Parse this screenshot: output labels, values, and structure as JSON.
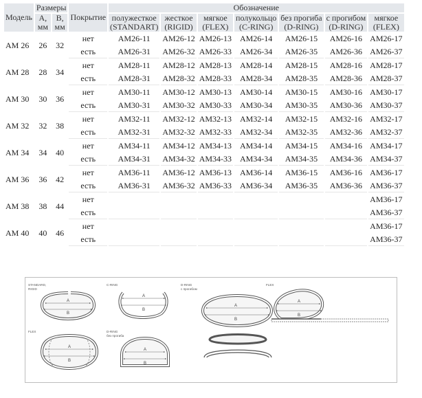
{
  "table": {
    "headers": {
      "model": "Модель",
      "sizes": "Размеры",
      "designation": "Обозначение",
      "a": "А,",
      "a_unit": "мм",
      "b": "В,",
      "b_unit": "мм",
      "coating": "Покрытие",
      "types": [
        {
          "name": "полужесткое",
          "code": "(STANDART)"
        },
        {
          "name": "жесткое",
          "code": "(RIGID)"
        },
        {
          "name": "мягкое",
          "code": "(FLEX)"
        },
        {
          "name": "полукольцо",
          "code": "(C-RING)"
        },
        {
          "name": "без прогиба",
          "code": "(D-RING)"
        },
        {
          "name": "с прогибом",
          "code": "(D-RING)"
        },
        {
          "name": "мягкое",
          "code": "(FLEX)"
        }
      ]
    },
    "groups": [
      {
        "model": "АМ 26",
        "a": "26",
        "b": "32",
        "rows": [
          {
            "coating": "нет",
            "codes": [
              "АМ26-11",
              "АМ26-12",
              "АМ26-13",
              "АМ26-14",
              "АМ26-15",
              "АМ26-16",
              "АМ26-17"
            ]
          },
          {
            "coating": "есть",
            "codes": [
              "АМ26-31",
              "АМ26-32",
              "АМ26-33",
              "АМ26-34",
              "АМ26-35",
              "АМ26-36",
              "АМ26-37"
            ]
          }
        ]
      },
      {
        "model": "АМ 28",
        "a": "28",
        "b": "34",
        "rows": [
          {
            "coating": "нет",
            "codes": [
              "АМ28-11",
              "АМ28-12",
              "АМ28-13",
              "АМ28-14",
              "АМ28-15",
              "АМ28-16",
              "АМ28-17"
            ]
          },
          {
            "coating": "есть",
            "codes": [
              "АМ28-31",
              "АМ28-32",
              "АМ28-33",
              "АМ28-34",
              "АМ28-35",
              "АМ28-36",
              "АМ28-37"
            ]
          }
        ]
      },
      {
        "model": "АМ 30",
        "a": "30",
        "b": "36",
        "rows": [
          {
            "coating": "нет",
            "codes": [
              "АМ30-11",
              "АМ30-12",
              "АМ30-13",
              "АМ30-14",
              "АМ30-15",
              "АМ30-16",
              "АМ30-17"
            ]
          },
          {
            "coating": "есть",
            "codes": [
              "АМ30-31",
              "АМ30-32",
              "АМ30-33",
              "АМ30-34",
              "АМ30-35",
              "АМ30-36",
              "АМ30-37"
            ]
          }
        ]
      },
      {
        "model": "АМ 32",
        "a": "32",
        "b": "38",
        "rows": [
          {
            "coating": "нет",
            "codes": [
              "АМ32-11",
              "АМ32-12",
              "АМ32-13",
              "АМ32-14",
              "АМ32-15",
              "АМ32-16",
              "АМ32-17"
            ]
          },
          {
            "coating": "есть",
            "codes": [
              "АМ32-31",
              "АМ32-32",
              "АМ32-33",
              "АМ32-34",
              "АМ32-35",
              "АМ32-36",
              "АМ32-37"
            ]
          }
        ]
      },
      {
        "model": "АМ 34",
        "a": "34",
        "b": "40",
        "rows": [
          {
            "coating": "нет",
            "codes": [
              "АМ34-11",
              "АМ34-12",
              "АМ34-13",
              "АМ34-14",
              "АМ34-15",
              "АМ34-16",
              "АМ34-17"
            ]
          },
          {
            "coating": "есть",
            "codes": [
              "АМ34-31",
              "АМ34-32",
              "АМ34-33",
              "АМ34-34",
              "АМ34-35",
              "АМ34-36",
              "АМ34-37"
            ]
          }
        ]
      },
      {
        "model": "АМ 36",
        "a": "36",
        "b": "42",
        "rows": [
          {
            "coating": "нет",
            "codes": [
              "АМ36-11",
              "АМ36-12",
              "АМ36-13",
              "АМ36-14",
              "АМ36-15",
              "АМ36-16",
              "АМ36-17"
            ]
          },
          {
            "coating": "есть",
            "codes": [
              "АМ36-31",
              "АМ36-32",
              "АМ36-33",
              "АМ36-34",
              "АМ36-35",
              "АМ36-36",
              "АМ36-37"
            ]
          }
        ]
      },
      {
        "model": "АМ 38",
        "a": "38",
        "b": "44",
        "rows": [
          {
            "coating": "нет",
            "codes": [
              "",
              "",
              "",
              "",
              "",
              "",
              "АМ36-17"
            ]
          },
          {
            "coating": "есть",
            "codes": [
              "",
              "",
              "",
              "",
              "",
              "",
              "АМ36-37"
            ]
          }
        ]
      },
      {
        "model": "АМ 40",
        "a": "40",
        "b": "46",
        "rows": [
          {
            "coating": "нет",
            "codes": [
              "",
              "",
              "",
              "",
              "",
              "",
              "АМ36-17"
            ]
          },
          {
            "coating": "есть",
            "codes": [
              "",
              "",
              "",
              "",
              "",
              "",
              "АМ36-37"
            ]
          }
        ]
      }
    ]
  },
  "diagram": {
    "labels": {
      "standard": "STANDARD,",
      "rigid": "RIGID",
      "cring": "C-RING",
      "dring": "D-RING",
      "dring_sub": "с прогибом",
      "flex_top": "FLEX",
      "flex_left": "FLEX",
      "dring2": "D-RING",
      "dring2_sub": "без прогиба",
      "dim_a": "A",
      "dim_b": "B"
    }
  }
}
